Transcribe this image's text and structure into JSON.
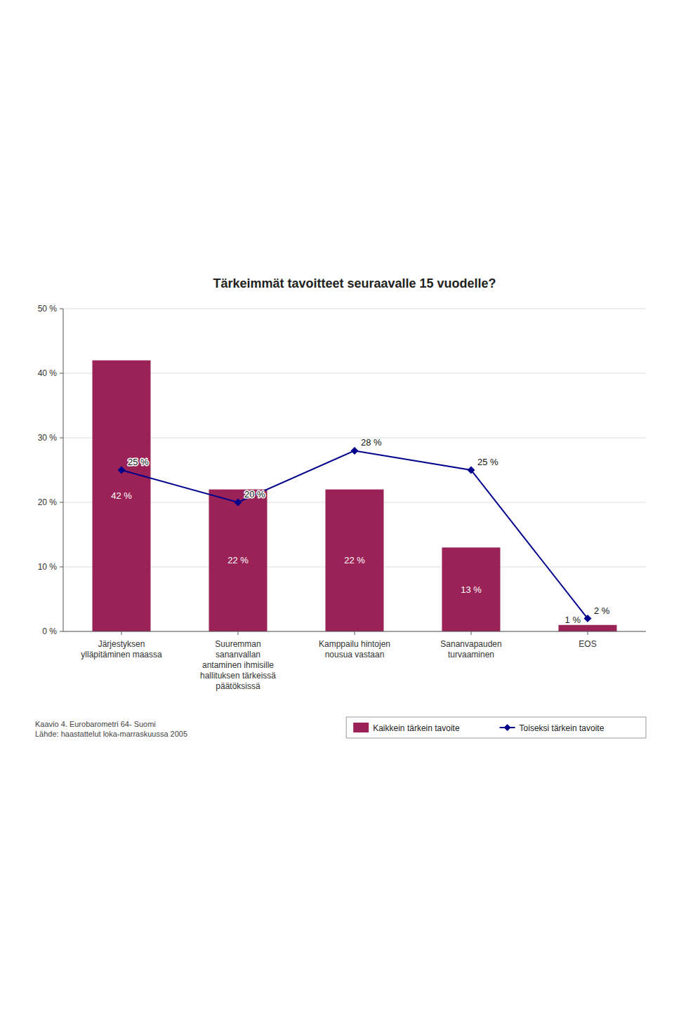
{
  "chart_data": {
    "type": "bar",
    "title": "Tärkeimmät tavoitteet seuraavalle 15 vuodelle?",
    "categories": [
      "Järjestyksen\nylläpitäminen maassa",
      "Suuremman\nsananvallan\nantaminen ihmisille\nhallituksen tärkeissä\npäätöksissä",
      "Kamppailu hintojen\nnousua vastaan",
      "Sananvapauden\nturvaaminen",
      "EOS"
    ],
    "series": [
      {
        "name": "Kaikkein tärkein tavoite",
        "type": "bar",
        "color": "#9B2257",
        "values": [
          42,
          22,
          22,
          13,
          1
        ],
        "value_labels": [
          "42 %",
          "22 %",
          "22 %",
          "13 %",
          "1 %"
        ]
      },
      {
        "name": "Toiseksi tärkein tavoite",
        "type": "line",
        "color": "#00008B",
        "marker": "diamond",
        "values": [
          25,
          20,
          28,
          25,
          2
        ],
        "value_labels": [
          "25 %",
          "20 %",
          "28 %",
          "25 %",
          "2 %"
        ]
      }
    ],
    "ylim": [
      0,
      50
    ],
    "yticks": [
      {
        "value": 0,
        "label": "0 %"
      },
      {
        "value": 10,
        "label": "10 %"
      },
      {
        "value": 20,
        "label": "20 %"
      },
      {
        "value": 30,
        "label": "30 %"
      },
      {
        "value": 40,
        "label": "40 %"
      },
      {
        "value": 50,
        "label": "50 %"
      }
    ],
    "grid": true,
    "legend": "bottom right",
    "data_labels": true,
    "annotations": [
      "Kaavio 4. Eurobarometri 64- Suomi\nLähde: haastattelut loka-marraskuussa 2005"
    ]
  }
}
